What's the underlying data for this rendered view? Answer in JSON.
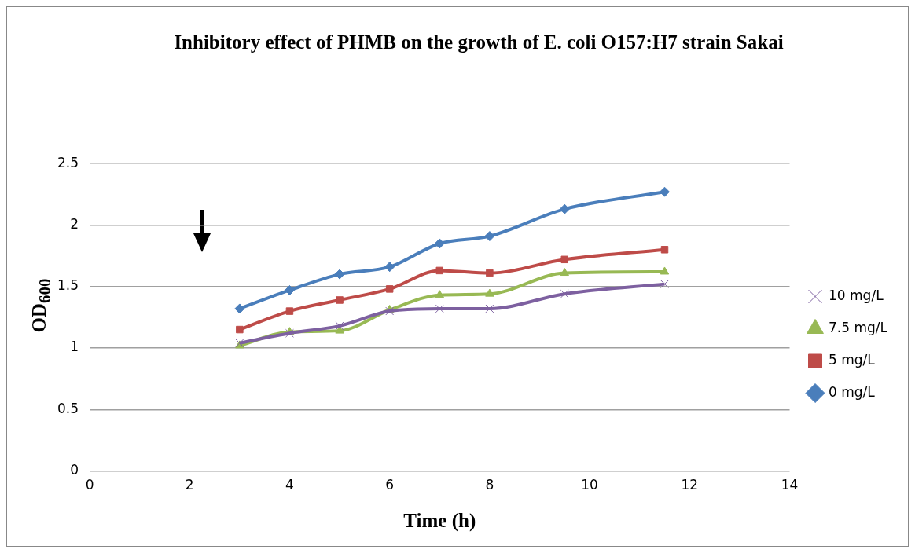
{
  "chart_data": {
    "type": "line",
    "title": "Inhibitory effect of PHMB on the growth of E. coli O157:H7 strain Sakai",
    "xlabel": "Time (h)",
    "ylabel": "OD$_{600}$",
    "x": [
      3,
      4,
      5,
      6,
      7,
      8,
      9.5,
      11.5
    ],
    "series": [
      {
        "name": "0 mg/L",
        "color": "#4a7ebb",
        "marker": "diamond",
        "values": [
          1.32,
          1.47,
          1.6,
          1.66,
          1.85,
          1.91,
          2.13,
          2.27
        ]
      },
      {
        "name": "5 mg/L",
        "color": "#be4b48",
        "marker": "square",
        "values": [
          1.15,
          1.3,
          1.39,
          1.48,
          1.63,
          1.61,
          1.72,
          1.8
        ]
      },
      {
        "name": "7.5 mg/L",
        "color": "#98b954",
        "marker": "triangle",
        "values": [
          1.02,
          1.13,
          1.14,
          1.31,
          1.43,
          1.44,
          1.61,
          1.62
        ]
      },
      {
        "name": "10 mg/L",
        "color": "#7d60a0",
        "marker": "cross",
        "values": [
          1.04,
          1.12,
          1.18,
          1.3,
          1.32,
          1.32,
          1.44,
          1.52
        ]
      }
    ],
    "xlim": [
      0,
      14
    ],
    "xticks": [
      0,
      2,
      4,
      6,
      8,
      10,
      12,
      14
    ],
    "ylim": [
      0,
      2.5
    ],
    "yticks": [
      0,
      0.5,
      1,
      1.5,
      2,
      2.5
    ],
    "grid": "y",
    "legend": "right"
  }
}
